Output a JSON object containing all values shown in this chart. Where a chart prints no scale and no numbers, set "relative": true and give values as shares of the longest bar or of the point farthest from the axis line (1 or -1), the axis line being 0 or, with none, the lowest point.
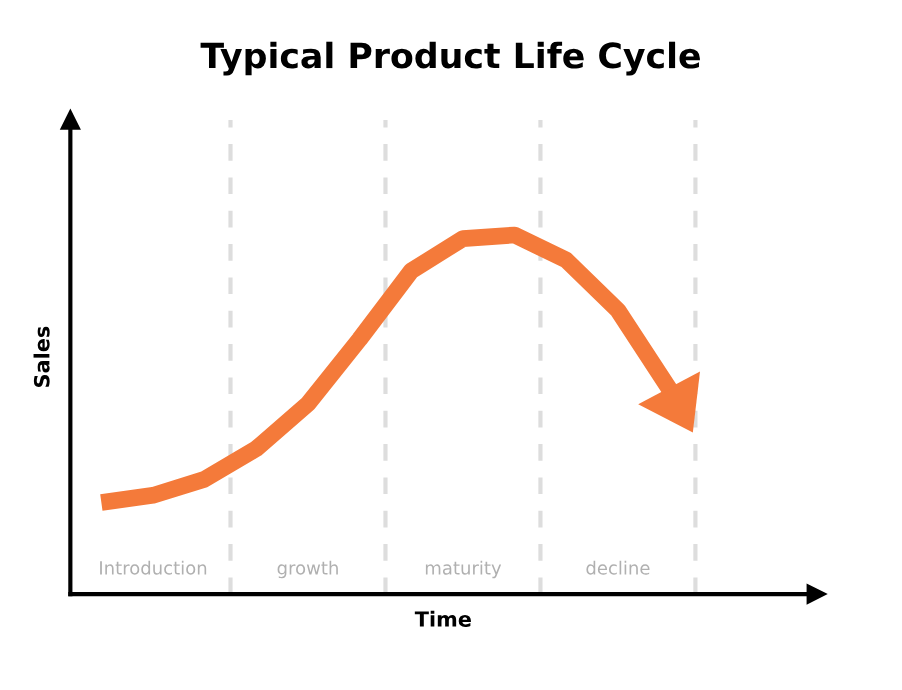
{
  "chart_data": {
    "type": "line",
    "title": "Typical Product Life Cycle",
    "xlabel": "Time",
    "ylabel": "Sales",
    "relative": true,
    "categories": [
      null,
      "Introduction",
      null,
      null,
      "growth",
      null,
      null,
      "maturity",
      null,
      null,
      "decline",
      null
    ],
    "series": [
      {
        "color": "#f47a3a",
        "values": [
          0.255,
          0.275,
          0.32,
          0.405,
          0.53,
          0.71,
          0.9,
          0.99,
          1.0,
          0.93,
          0.79,
          0.57
        ]
      }
    ],
    "marker": "none",
    "line_style": "solid"
  }
}
